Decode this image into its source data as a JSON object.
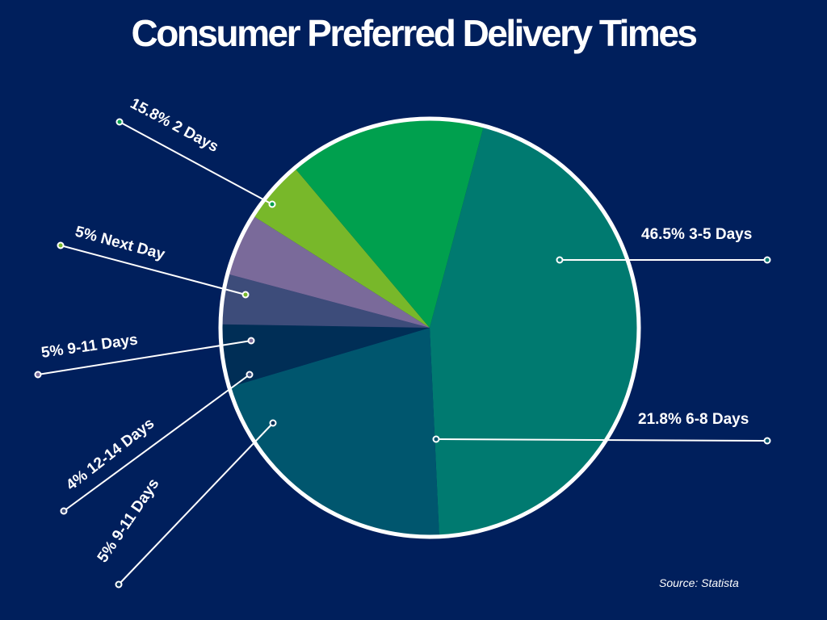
{
  "chart_data": {
    "type": "pie",
    "title": "Consumer Preferred Delivery Times",
    "slices": [
      {
        "label": "3-5 Days",
        "value": 46.5,
        "display": "46.5% 3-5 Days",
        "color": "#007a70"
      },
      {
        "label": "6-8 Days",
        "value": 21.8,
        "display": "21.8% 6-8 Days",
        "color": "#00566e"
      },
      {
        "label": "9-11 Days",
        "value": 5,
        "display": "5% 9-11 Days",
        "color": "#002e56"
      },
      {
        "label": "12-14 Days",
        "value": 4,
        "display": "4% 12-14 Days",
        "color": "#3d4c7a"
      },
      {
        "label": "9-11 Days",
        "value": 5,
        "display": "5% 9-11 Days",
        "color": "#7a6a9a"
      },
      {
        "label": "Next Day",
        "value": 5,
        "display": "5% Next Day",
        "color": "#78b82a"
      },
      {
        "label": "2 Days",
        "value": 15.8,
        "display": "15.8% 2 Days",
        "color": "#00a04e"
      }
    ],
    "start_angle_deg": 15,
    "direction": "clockwise",
    "legend": "none",
    "labels": "callout-lines"
  },
  "background_color": "#001f5c",
  "source": "Source: Statista"
}
